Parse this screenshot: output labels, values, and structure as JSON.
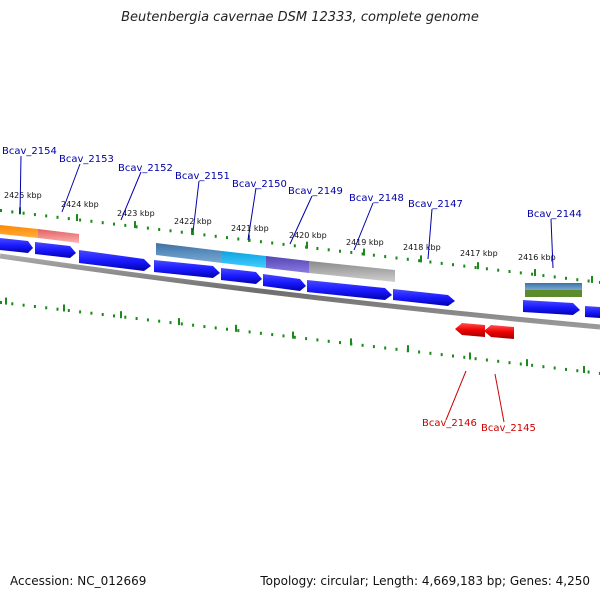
{
  "title": "Beutenbergia cavernae DSM 12333, complete genome",
  "footer": {
    "accession": "Accession: NC_012669",
    "topology": "Topology: circular; Length: 4,669,183 bp; Genes: 4,250"
  },
  "colors": {
    "plus_strand_gene": "#1a1aff",
    "minus_strand_gene": "#ee0000",
    "backbone": "#808080",
    "tick": "#1a8a1a",
    "plus_label": "#0000aa",
    "minus_label": "#cc0000"
  },
  "ticks": [
    "2425 kbp",
    "2424 kbp",
    "2423 kbp",
    "2422 kbp",
    "2421 kbp",
    "2420 kbp",
    "2419 kbp",
    "2418 kbp",
    "2417 kbp",
    "2416 kbp"
  ],
  "genes_plus": [
    "Bcav_2154",
    "Bcav_2153",
    "Bcav_2152",
    "Bcav_2151",
    "Bcav_2150",
    "Bcav_2149",
    "Bcav_2148",
    "Bcav_2147",
    "Bcav_2144"
  ],
  "genes_minus": [
    "Bcav_2146",
    "Bcav_2145"
  ]
}
